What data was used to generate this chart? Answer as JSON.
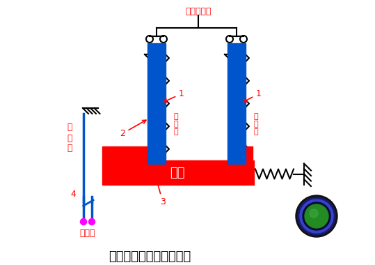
{
  "title": "热继电器工作原理示意图",
  "bg_color": "#ffffff",
  "label_top": "接电机定子",
  "label_left_1": "接",
  "label_left_2": "电",
  "label_left_3": "源",
  "label_bottom_left": "接电机",
  "label_guide": "导板",
  "label_1a": "1",
  "label_1b": "1",
  "label_2": "2",
  "label_3": "3",
  "label_4": "4",
  "label_hot1": "热\n元\n件",
  "label_hot2": "热\n元\n件",
  "red": "#ff0000",
  "blue": "#0055cc",
  "magenta": "#ff00ff",
  "black": "#000000",
  "green_button_color": "#228B22"
}
